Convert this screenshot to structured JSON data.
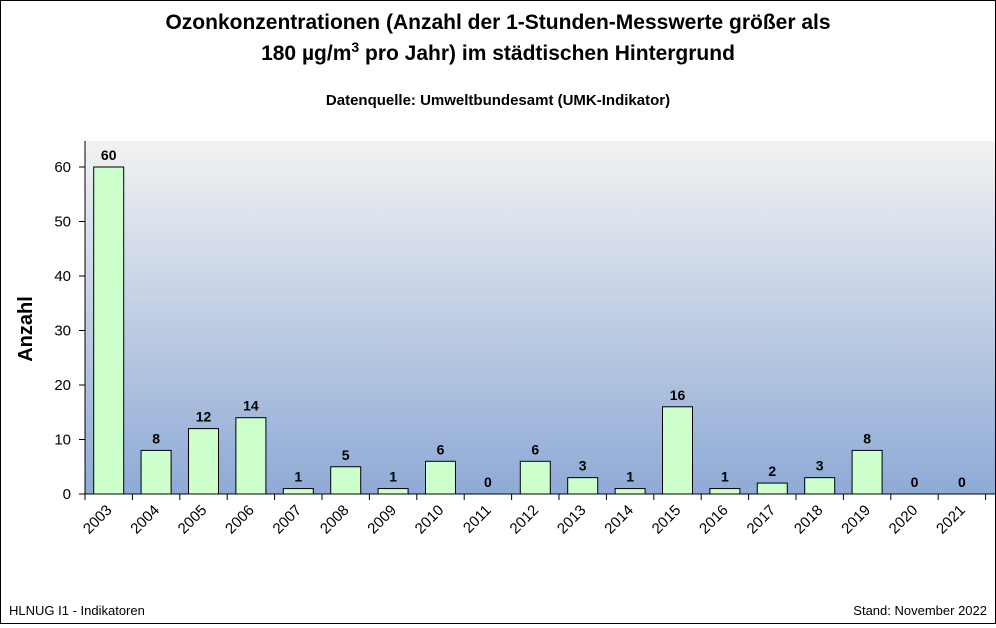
{
  "title_line1": "Ozonkonzentrationen (Anzahl der 1-Stunden-Messwerte größer als",
  "title_line2_pre": "180 µg/m",
  "title_line2_sup": "3",
  "title_line2_post": " pro Jahr) im städtischen Hintergrund",
  "subtitle": "Datenquelle: Umweltbundesamt (UMK-Indikator)",
  "footer_left": "HLNUG I1 - Indikatoren",
  "footer_right": "Stand: November 2022",
  "colors": {
    "bar_fill": "#ccffcc",
    "bar_stroke": "#000000",
    "plot_bg_top": "#f2f2f2",
    "plot_bg_bottom": "#8eaad6"
  },
  "chart_data": {
    "type": "bar",
    "title": "Ozonkonzentrationen (Anzahl der 1-Stunden-Messwerte größer als 180 µg/m3 pro Jahr) im städtischen Hintergrund",
    "subtitle": "Datenquelle: Umweltbundesamt (UMK-Indikator)",
    "xlabel": "",
    "ylabel": "Anzahl",
    "ylim": [
      0,
      60
    ],
    "yticks": [
      0,
      10,
      20,
      30,
      40,
      50,
      60
    ],
    "grid": false,
    "legend": "none",
    "categories": [
      "2003",
      "2004",
      "2005",
      "2006",
      "2007",
      "2008",
      "2009",
      "2010",
      "2011",
      "2012",
      "2013",
      "2014",
      "2015",
      "2016",
      "2017",
      "2018",
      "2019",
      "2020",
      "2021"
    ],
    "values": [
      60,
      8,
      12,
      14,
      1,
      5,
      1,
      6,
      0,
      6,
      3,
      1,
      16,
      1,
      2,
      3,
      8,
      0,
      0
    ]
  }
}
